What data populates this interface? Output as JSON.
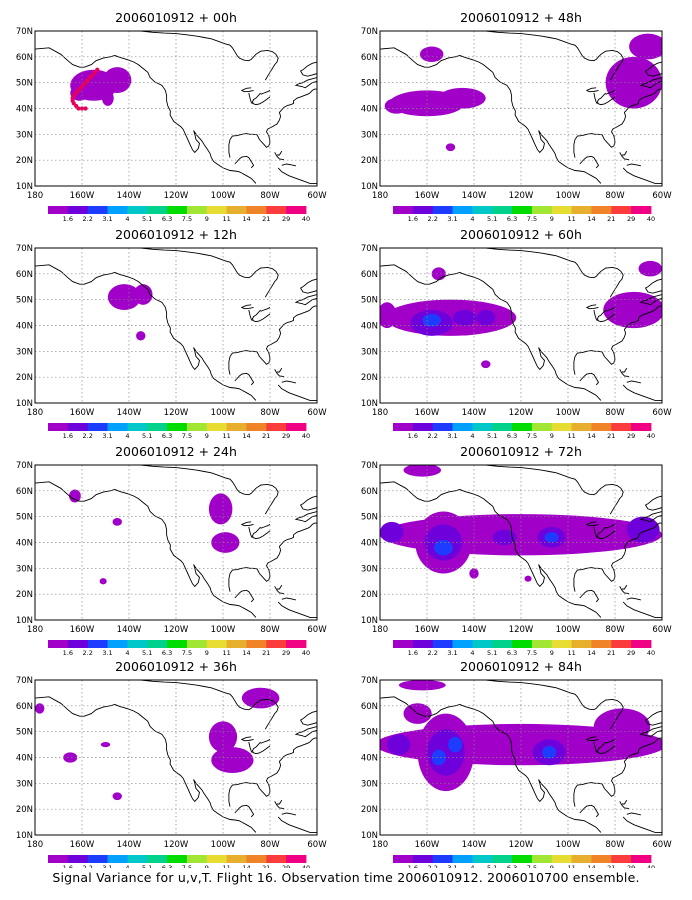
{
  "figure_caption": "Signal Variance for u,v,T. Flight 16. Observation time 2006010912. 2006010700 ensemble.",
  "lon_tick_labels": [
    "180",
    "160W",
    "140W",
    "120W",
    "100W",
    "80W",
    "60W"
  ],
  "lat_tick_labels": [
    "10N",
    "20N",
    "30N",
    "40N",
    "50N",
    "60N",
    "70N"
  ],
  "colorbar": {
    "levels": [
      "1.6",
      "2.2",
      "3.1",
      "4",
      "5.1",
      "6.3",
      "7.5",
      "9",
      "11",
      "14",
      "21",
      "29",
      "40"
    ],
    "colors": [
      "#a000c8",
      "#6e00dc",
      "#1e3cff",
      "#00a0ff",
      "#00c8c8",
      "#00d28c",
      "#00dc00",
      "#a0e632",
      "#e6dc32",
      "#e6af2d",
      "#f08228",
      "#fa3c3c",
      "#f00082"
    ]
  },
  "level_colors": [
    "#a000c8",
    "#6e00dc",
    "#1e3cff",
    "#00a0ff",
    "#00c8c8"
  ],
  "chart_data": [
    {
      "type": "heatmap",
      "title": "2006010912 + 00h",
      "xlim": [
        180,
        300
      ],
      "ylim": [
        10,
        70
      ],
      "grid": true,
      "blobs": [
        {
          "lon": 205,
          "lat": 49,
          "rlon": 10,
          "rlat": 6,
          "level": 1
        },
        {
          "lon": 215,
          "lat": 51,
          "rlon": 6,
          "rlat": 5,
          "level": 1
        },
        {
          "lon": 211,
          "lat": 44,
          "rlon": 2.5,
          "rlat": 3,
          "level": 1
        },
        {
          "lon": 199,
          "lat": 46,
          "rlon": 4,
          "rlat": 3,
          "level": 1
        }
      ],
      "flight_track": [
        [
          206.5,
          55
        ],
        [
          205.5,
          54
        ],
        [
          204.5,
          53
        ],
        [
          203.5,
          52
        ],
        [
          202.5,
          51
        ],
        [
          201.5,
          50
        ],
        [
          200.5,
          49
        ],
        [
          199.5,
          48
        ],
        [
          198.5,
          47
        ],
        [
          197.5,
          46
        ],
        [
          196.5,
          45
        ],
        [
          196,
          44
        ],
        [
          196,
          43
        ],
        [
          196.5,
          42
        ],
        [
          197.5,
          41
        ],
        [
          198.5,
          40
        ],
        [
          200,
          40
        ],
        [
          201.5,
          40
        ]
      ]
    },
    {
      "type": "heatmap",
      "title": "2006010912 + 48h",
      "xlim": [
        180,
        300
      ],
      "ylim": [
        10,
        70
      ],
      "grid": true,
      "blobs": [
        {
          "lon": 200,
          "lat": 42,
          "rlon": 16,
          "rlat": 5,
          "level": 1
        },
        {
          "lon": 215,
          "lat": 44,
          "rlon": 10,
          "rlat": 4,
          "level": 1
        },
        {
          "lon": 187,
          "lat": 41,
          "rlon": 5,
          "rlat": 3,
          "level": 1
        },
        {
          "lon": 202,
          "lat": 61,
          "rlon": 5,
          "rlat": 3,
          "level": 1
        },
        {
          "lon": 210,
          "lat": 25,
          "rlon": 2,
          "rlat": 1.5,
          "level": 1
        },
        {
          "lon": 288,
          "lat": 50,
          "rlon": 12,
          "rlat": 10,
          "level": 1
        },
        {
          "lon": 294,
          "lat": 64,
          "rlon": 8,
          "rlat": 5,
          "level": 1
        }
      ],
      "flight_track": []
    },
    {
      "type": "heatmap",
      "title": "2006010912 + 12h",
      "xlim": [
        180,
        300
      ],
      "ylim": [
        10,
        70
      ],
      "grid": true,
      "blobs": [
        {
          "lon": 218,
          "lat": 51,
          "rlon": 7,
          "rlat": 5,
          "level": 1
        },
        {
          "lon": 226,
          "lat": 52,
          "rlon": 4,
          "rlat": 4,
          "level": 1
        },
        {
          "lon": 225,
          "lat": 36,
          "rlon": 2,
          "rlat": 1.8,
          "level": 1
        }
      ],
      "flight_track": []
    },
    {
      "type": "heatmap",
      "title": "2006010912 + 60h",
      "xlim": [
        180,
        300
      ],
      "ylim": [
        10,
        70
      ],
      "grid": true,
      "blobs": [
        {
          "lon": 210,
          "lat": 43,
          "rlon": 28,
          "rlat": 7,
          "level": 1
        },
        {
          "lon": 202,
          "lat": 41,
          "rlon": 9,
          "rlat": 5,
          "level": 2
        },
        {
          "lon": 202,
          "lat": 42,
          "rlon": 4,
          "rlat": 2.5,
          "level": 3
        },
        {
          "lon": 183,
          "lat": 44,
          "rlon": 4,
          "rlat": 5,
          "level": 1
        },
        {
          "lon": 216,
          "lat": 43,
          "rlon": 5,
          "rlat": 3,
          "level": 2
        },
        {
          "lon": 225,
          "lat": 43,
          "rlon": 4,
          "rlat": 3,
          "level": 2
        },
        {
          "lon": 205,
          "lat": 60,
          "rlon": 3,
          "rlat": 2.5,
          "level": 1
        },
        {
          "lon": 288,
          "lat": 46,
          "rlon": 13,
          "rlat": 7,
          "level": 1
        },
        {
          "lon": 295,
          "lat": 62,
          "rlon": 5,
          "rlat": 3,
          "level": 1
        },
        {
          "lon": 225,
          "lat": 25,
          "rlon": 2,
          "rlat": 1.5,
          "level": 1
        }
      ],
      "flight_track": []
    },
    {
      "type": "heatmap",
      "title": "2006010912 + 24h",
      "xlim": [
        180,
        300
      ],
      "ylim": [
        10,
        70
      ],
      "grid": true,
      "blobs": [
        {
          "lon": 259,
          "lat": 53,
          "rlon": 5,
          "rlat": 6,
          "level": 1
        },
        {
          "lon": 261,
          "lat": 40,
          "rlon": 6,
          "rlat": 4,
          "level": 1
        },
        {
          "lon": 197,
          "lat": 58,
          "rlon": 2.5,
          "rlat": 2.5,
          "level": 1
        },
        {
          "lon": 215,
          "lat": 48,
          "rlon": 2,
          "rlat": 1.5,
          "level": 1
        },
        {
          "lon": 209,
          "lat": 25,
          "rlon": 1.5,
          "rlat": 1.2,
          "level": 1
        }
      ],
      "flight_track": []
    },
    {
      "type": "heatmap",
      "title": "2006010912 + 72h",
      "xlim": [
        180,
        300
      ],
      "ylim": [
        10,
        70
      ],
      "grid": true,
      "blobs": [
        {
          "lon": 240,
          "lat": 43,
          "rlon": 60,
          "rlat": 8,
          "level": 1
        },
        {
          "lon": 207,
          "lat": 40,
          "rlon": 12,
          "rlat": 12,
          "level": 1
        },
        {
          "lon": 207,
          "lat": 40,
          "rlon": 8,
          "rlat": 7,
          "level": 2
        },
        {
          "lon": 207,
          "lat": 38,
          "rlon": 4,
          "rlat": 3,
          "level": 3
        },
        {
          "lon": 185,
          "lat": 44,
          "rlon": 5,
          "rlat": 4,
          "level": 2
        },
        {
          "lon": 253,
          "lat": 42,
          "rlon": 6,
          "rlat": 4,
          "level": 2
        },
        {
          "lon": 253,
          "lat": 42,
          "rlon": 3,
          "rlat": 2,
          "level": 3
        },
        {
          "lon": 233,
          "lat": 42,
          "rlon": 5,
          "rlat": 3,
          "level": 2
        },
        {
          "lon": 292,
          "lat": 45,
          "rlon": 7,
          "rlat": 5,
          "level": 2
        },
        {
          "lon": 198,
          "lat": 68,
          "rlon": 8,
          "rlat": 2.5,
          "level": 1
        },
        {
          "lon": 220,
          "lat": 28,
          "rlon": 2,
          "rlat": 2,
          "level": 1
        },
        {
          "lon": 243,
          "lat": 26,
          "rlon": 1.5,
          "rlat": 1.2,
          "level": 1
        }
      ],
      "flight_track": []
    },
    {
      "type": "heatmap",
      "title": "2006010912 + 36h",
      "xlim": [
        180,
        300
      ],
      "ylim": [
        10,
        70
      ],
      "grid": true,
      "blobs": [
        {
          "lon": 260,
          "lat": 48,
          "rlon": 6,
          "rlat": 6,
          "level": 1
        },
        {
          "lon": 264,
          "lat": 39,
          "rlon": 9,
          "rlat": 5,
          "level": 1
        },
        {
          "lon": 276,
          "lat": 63,
          "rlon": 8,
          "rlat": 4,
          "level": 1
        },
        {
          "lon": 195,
          "lat": 40,
          "rlon": 3,
          "rlat": 2,
          "level": 1
        },
        {
          "lon": 210,
          "lat": 45,
          "rlon": 2,
          "rlat": 1,
          "level": 1
        },
        {
          "lon": 215,
          "lat": 25,
          "rlon": 2,
          "rlat": 1.5,
          "level": 1
        },
        {
          "lon": 182,
          "lat": 59,
          "rlon": 2,
          "rlat": 2,
          "level": 1
        }
      ],
      "flight_track": []
    },
    {
      "type": "heatmap",
      "title": "2006010912 + 84h",
      "xlim": [
        180,
        300
      ],
      "ylim": [
        10,
        70
      ],
      "grid": true,
      "blobs": [
        {
          "lon": 240,
          "lat": 45,
          "rlon": 62,
          "rlat": 8,
          "level": 1
        },
        {
          "lon": 208,
          "lat": 42,
          "rlon": 12,
          "rlat": 15,
          "level": 1
        },
        {
          "lon": 208,
          "lat": 42,
          "rlon": 8,
          "rlat": 9,
          "level": 2
        },
        {
          "lon": 205,
          "lat": 40,
          "rlon": 3,
          "rlat": 3,
          "level": 3
        },
        {
          "lon": 212,
          "lat": 45,
          "rlon": 3,
          "rlat": 3,
          "level": 3
        },
        {
          "lon": 188,
          "lat": 45,
          "rlon": 5,
          "rlat": 4,
          "level": 2
        },
        {
          "lon": 252,
          "lat": 42,
          "rlon": 7,
          "rlat": 5,
          "level": 2
        },
        {
          "lon": 252,
          "lat": 42,
          "rlon": 3,
          "rlat": 2.5,
          "level": 3
        },
        {
          "lon": 196,
          "lat": 57,
          "rlon": 6,
          "rlat": 4,
          "level": 1
        },
        {
          "lon": 283,
          "lat": 52,
          "rlon": 12,
          "rlat": 7,
          "level": 1
        },
        {
          "lon": 198,
          "lat": 68,
          "rlon": 10,
          "rlat": 2,
          "level": 1
        }
      ],
      "flight_track": []
    }
  ]
}
